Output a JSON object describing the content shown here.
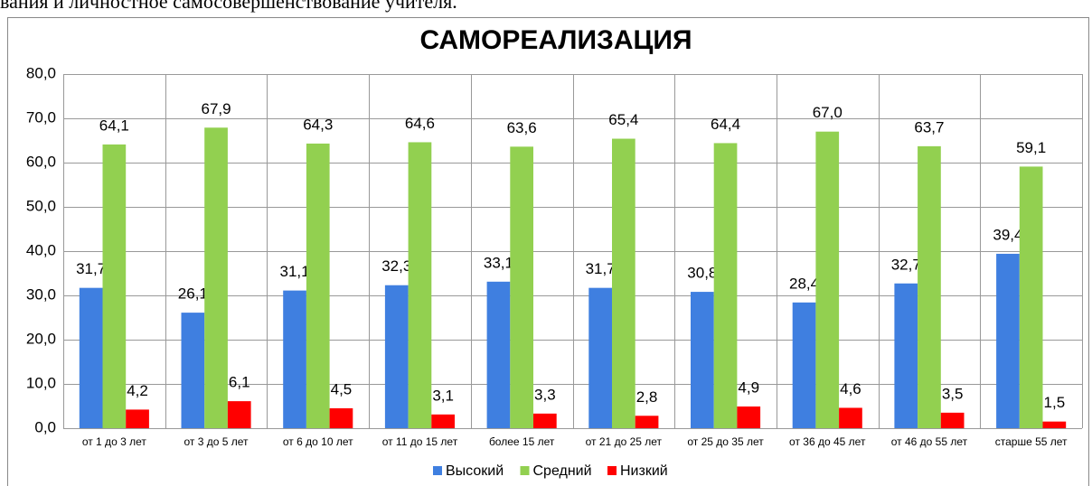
{
  "header_text": "вания и личностное самосовершенствование учителя.",
  "chart_data": {
    "type": "bar",
    "title": "САМОРЕАЛИЗАЦИЯ",
    "categories": [
      "от 1 до 3 лет",
      "от 3 до 5 лет",
      "от 6 до 10 лет",
      "от 11 до 15 лет",
      "более 15 лет",
      "от 21 до 25 лет",
      "от 25 до 35 лет",
      "от 36 до 45 лет",
      "от 46 до 55 лет",
      "старше 55 лет"
    ],
    "series": [
      {
        "name": "Высокий",
        "color": "#3f7fe0",
        "values": [
          31.7,
          26.1,
          31.1,
          32.3,
          33.1,
          31.7,
          30.8,
          28.4,
          32.7,
          39.4
        ],
        "value_labels": [
          "31,7",
          "26,1",
          "31,1",
          "32,3",
          "33,1",
          "31,7",
          "30,8",
          "28,4",
          "32,7",
          "39,4"
        ]
      },
      {
        "name": "Средний",
        "color": "#92d050",
        "values": [
          64.1,
          67.9,
          64.3,
          64.6,
          63.6,
          65.4,
          64.4,
          67.0,
          63.7,
          59.1
        ],
        "value_labels": [
          "64,1",
          "67,9",
          "64,3",
          "64,6",
          "63,6",
          "65,4",
          "64,4",
          "67,0",
          "63,7",
          "59,1"
        ]
      },
      {
        "name": "Низкий",
        "color": "#ff0000",
        "values": [
          4.2,
          6.1,
          4.5,
          3.1,
          3.3,
          2.8,
          4.9,
          4.6,
          3.5,
          1.5
        ],
        "value_labels": [
          "4,2",
          "6,1",
          "4,5",
          "3,1",
          "3,3",
          "2,8",
          "4,9",
          "4,6",
          "3,5",
          "1,5"
        ]
      }
    ],
    "ylim": [
      0,
      80
    ],
    "yticks": [
      {
        "value": 0,
        "label": "0,0"
      },
      {
        "value": 10,
        "label": "10,0"
      },
      {
        "value": 20,
        "label": "20,0"
      },
      {
        "value": 30,
        "label": "30,0"
      },
      {
        "value": 40,
        "label": "40,0"
      },
      {
        "value": 50,
        "label": "50,0"
      },
      {
        "value": 60,
        "label": "60,0"
      },
      {
        "value": 70,
        "label": "70,0"
      },
      {
        "value": 80,
        "label": "80,0"
      }
    ],
    "grid": true,
    "legend": "bottom"
  }
}
